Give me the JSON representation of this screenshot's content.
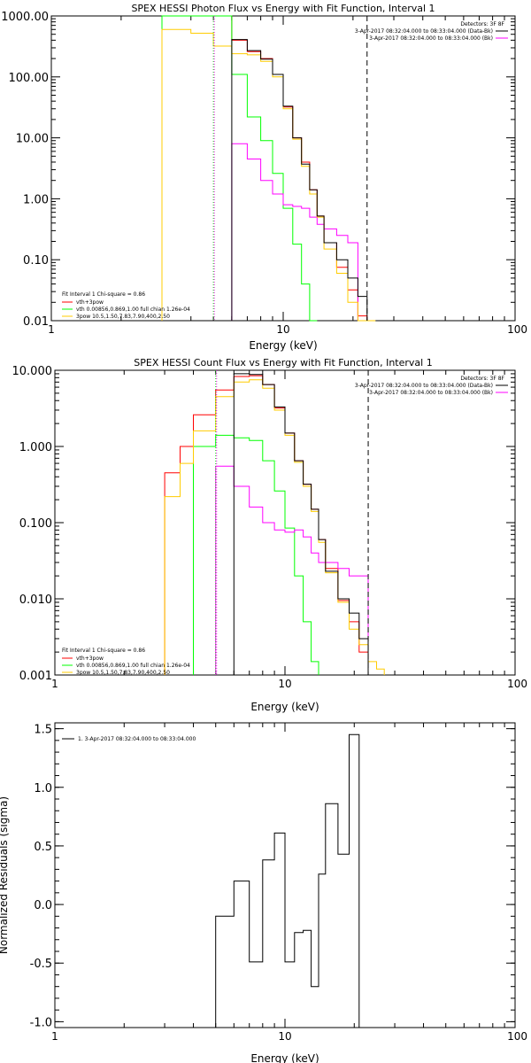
{
  "colors": {
    "data": "#000000",
    "total": "#ff0000",
    "thermal": "#00ff00",
    "powerlaw": "#ff00ff",
    "background": "#ffcc00",
    "frame": "#000000"
  },
  "chart_data": [
    {
      "type": "line",
      "title": "SPEX HESSI Photon Flux vs Energy with Fit Function, Interval 1",
      "xlabel": "Energy (keV)",
      "ylabel": "",
      "xscale": "log",
      "yscale": "log",
      "xlim": [
        1,
        100
      ],
      "ylim": [
        0.01,
        1000
      ],
      "xticks": [
        1,
        10,
        100
      ],
      "xtick_labels": [
        "1",
        "10",
        "100"
      ],
      "yticks": [
        0.01,
        0.1,
        1,
        10,
        100,
        1000
      ],
      "ytick_labels": [
        "0.01",
        "0.10",
        "1.00",
        "10.00",
        "100.00",
        "1000.00"
      ],
      "edges": [
        3,
        4,
        5,
        6,
        7,
        8,
        9,
        10,
        11,
        12,
        13,
        14,
        15,
        17,
        19,
        21,
        23,
        25
      ],
      "vlines": [
        {
          "x": 5,
          "style": "dotted",
          "color": "thermal"
        },
        {
          "x": 23,
          "style": "dashed",
          "color": "data"
        }
      ],
      "header_lines": [
        "Detectors: 3F 8F",
        "3-Apr-2017 08:32:04.000 to 08:33:04.000 (Data-Bk)",
        "3-Apr-2017 08:32:04.000 to 08:33:04.000 (Bk)"
      ],
      "legend_title": "Fit Interval 1    Chi-square = 0.86",
      "legend_entries": [
        "vth+3pow",
        "vth 0.00856,0.869,1.00  full chian 1.26e-04",
        "3pow 10.5,1.50,7.83,7.90,400,2.50"
      ],
      "series": [
        {
          "name": "vth+3pow",
          "color": "total",
          "values": [
            1000,
            1000,
            1000,
            400,
            260,
            200,
            110,
            32,
            10,
            4,
            1.4,
            0.52,
            0.19,
            0.075,
            0.032,
            0.012,
            null
          ]
        },
        {
          "name": "vth 0.00856,0.869,1.00  full chian 1.26e-04",
          "color": "thermal",
          "values": [
            1000,
            1000,
            1000,
            110,
            22,
            9,
            2.6,
            0.7,
            0.18,
            0.04,
            0.008,
            null,
            null,
            null,
            null,
            null,
            null
          ]
        },
        {
          "name": "3pow 10.5,1.50,7.83,7.90,400,2.50",
          "color": "powerlaw",
          "values": [
            null,
            null,
            null,
            8,
            4.5,
            2,
            1.2,
            0.8,
            0.75,
            0.7,
            0.5,
            0.38,
            0.32,
            0.25,
            0.19,
            null,
            null
          ]
        },
        {
          "name": "",
          "color": "background",
          "values": [
            600,
            520,
            320,
            240,
            230,
            180,
            100,
            30,
            9.5,
            3.4,
            1.2,
            0.5,
            0.15,
            0.06,
            0.02,
            0.0075,
            0.006
          ]
        },
        {
          "name": "",
          "color": "data",
          "values": [
            null,
            null,
            null,
            410,
            270,
            195,
            110,
            33,
            10,
            3.7,
            1.4,
            0.52,
            0.19,
            0.1,
            0.05,
            0.025,
            null
          ]
        }
      ]
    },
    {
      "type": "line",
      "title": "SPEX HESSI Count Flux vs Energy with Fit Function, Interval 1",
      "xlabel": "Energy (keV)",
      "ylabel": "",
      "xscale": "log",
      "yscale": "log",
      "xlim": [
        1,
        100
      ],
      "ylim": [
        0.001,
        10
      ],
      "xticks": [
        1,
        10,
        100
      ],
      "xtick_labels": [
        "1",
        "10",
        "100"
      ],
      "yticks": [
        0.001,
        0.01,
        0.1,
        1,
        10
      ],
      "ytick_labels": [
        "0.001",
        "0.010",
        "0.100",
        "1.000",
        "10.000"
      ],
      "edges": [
        3,
        3.5,
        4,
        5,
        6,
        7,
        8,
        9,
        10,
        11,
        12,
        13,
        14,
        15,
        17,
        19,
        21,
        23,
        25,
        27
      ],
      "vlines": [
        {
          "x": 5,
          "style": "dotted",
          "color": "thermal"
        },
        {
          "x": 23,
          "style": "dashed",
          "color": "data"
        }
      ],
      "header_lines": [
        "Detectors: 3F 8F",
        "3-Apr-2017 08:32:04.000 to 08:33:04.000 (Data-Bk)",
        "3-Apr-2017 08:32:04.000 to 08:33:04.000 (Bk)"
      ],
      "legend_title": "Fit Interval 1    Chi-square = 0.86",
      "legend_entries": [
        "vth+3pow",
        "vth 0.00856,0.869,1.00  full chian 1.26e-04",
        "3pow 10.5,1.50,7.83,7.90,400,2.50"
      ],
      "series": [
        {
          "name": "vth+3pow",
          "color": "total",
          "values": [
            0.45,
            1.0,
            2.6,
            5.5,
            8.3,
            8.5,
            6.5,
            3.2,
            1.5,
            0.65,
            0.32,
            0.15,
            0.06,
            0.025,
            0.0095,
            0.005,
            0.002,
            null,
            null
          ]
        },
        {
          "name": "vth 0.00856,0.869,1.00  full chian 1.26e-04",
          "color": "thermal",
          "values": [
            null,
            null,
            1.0,
            1.4,
            1.3,
            1.2,
            0.65,
            0.26,
            0.085,
            0.02,
            0.005,
            0.0015,
            null,
            null,
            null,
            null,
            null,
            null,
            null
          ]
        },
        {
          "name": "3pow 10.5,1.50,7.83,7.90,400,2.50",
          "color": "powerlaw",
          "values": [
            null,
            null,
            null,
            0.55,
            0.3,
            0.16,
            0.1,
            0.08,
            0.075,
            0.08,
            0.065,
            0.04,
            0.03,
            0.03,
            0.025,
            0.02,
            0.02,
            null,
            null
          ]
        },
        {
          "name": "",
          "color": "background",
          "values": [
            0.22,
            0.6,
            1.6,
            4.5,
            7,
            7.5,
            5.8,
            3,
            1.4,
            0.62,
            0.3,
            0.14,
            0.055,
            0.022,
            0.009,
            0.004,
            0.0025,
            0.0015,
            0.0012
          ]
        },
        {
          "name": "",
          "color": "data",
          "values": [
            null,
            null,
            null,
            null,
            9,
            8.8,
            6.5,
            3.3,
            1.5,
            0.65,
            0.32,
            0.15,
            0.06,
            0.023,
            0.01,
            0.0065,
            0.003,
            null,
            null
          ]
        }
      ]
    },
    {
      "type": "line",
      "title": "",
      "xlabel": "Energy (keV)",
      "ylabel": "Normalized Residuals (sigma)",
      "xscale": "log",
      "yscale": "linear",
      "xlim": [
        1,
        100
      ],
      "ylim": [
        -1.05,
        1.55
      ],
      "xticks": [
        1,
        10,
        100
      ],
      "xtick_labels": [
        "1",
        "10",
        "100"
      ],
      "yticks": [
        -1.0,
        -0.5,
        0.0,
        0.5,
        1.0,
        1.5
      ],
      "ytick_labels": [
        "-1.0",
        "-0.5",
        "0.0",
        "0.5",
        "1.0",
        "1.5"
      ],
      "edges": [
        5,
        6,
        7,
        8,
        9,
        10,
        11,
        12,
        13,
        14,
        15,
        17,
        19,
        21,
        23
      ],
      "legend_entries": [
        "1.  3-Apr-2017 08:32:04.000 to 08:33:04.000"
      ],
      "series": [
        {
          "name": "1.  3-Apr-2017 08:32:04.000 to 08:33:04.000",
          "color": "data",
          "values": [
            -0.1,
            0.2,
            -0.49,
            0.38,
            0.61,
            -0.49,
            -0.24,
            -0.22,
            -0.7,
            0.26,
            0.86,
            0.43,
            1.45,
            null
          ]
        }
      ]
    }
  ]
}
